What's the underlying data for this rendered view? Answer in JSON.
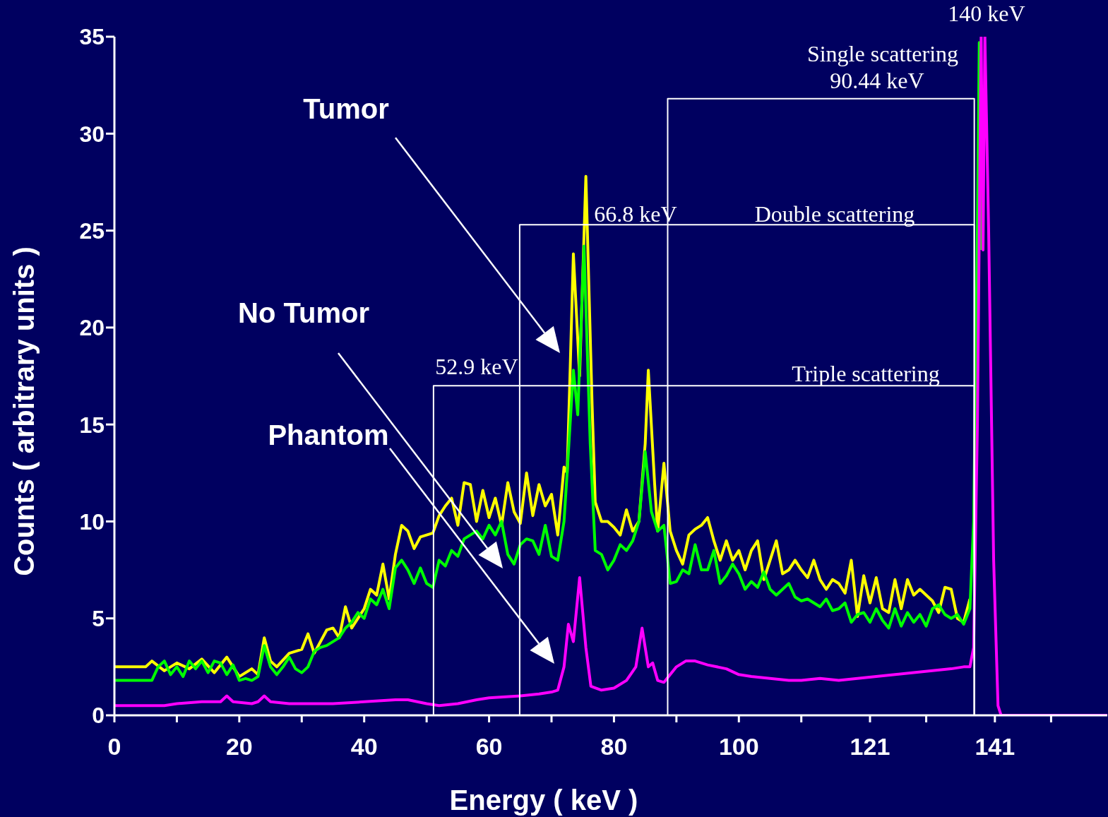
{
  "chart_data": {
    "type": "line",
    "xlabel": "Energy ( keV )",
    "ylabel": "Counts ( arbitrary units )",
    "xlim": [
      0,
      159
    ],
    "ylim": [
      0,
      35
    ],
    "xticks": [
      0,
      {
        "value": 10,
        "label": null
      },
      20,
      {
        "value": 30,
        "label": null
      },
      40,
      {
        "value": 50,
        "label": null
      },
      60,
      {
        "value": 70,
        "label": null
      },
      80,
      {
        "value": 90,
        "label": null
      },
      100,
      {
        "value": 110,
        "label": null
      },
      121,
      {
        "value": 130,
        "label": null
      },
      141,
      {
        "value": 150,
        "label": null
      }
    ],
    "yticks": [
      0,
      5,
      10,
      15,
      20,
      25,
      30,
      35
    ],
    "marker": "none",
    "line_style": "solid",
    "series": [
      {
        "color": "#ffff00",
        "x": [
          0,
          5,
          6,
          8,
          10,
          12,
          14,
          16,
          18,
          20,
          22,
          23,
          24,
          25,
          26,
          28,
          30,
          31,
          32,
          34,
          35,
          36,
          37,
          38,
          40,
          41,
          42,
          43,
          44,
          45,
          46,
          47,
          48,
          49,
          51,
          52,
          53,
          54,
          55,
          56,
          57,
          58,
          59,
          60,
          61,
          62,
          63,
          64,
          65,
          66,
          67,
          68,
          69,
          70,
          71,
          72,
          72.5,
          73,
          73.5,
          74.5,
          75.5,
          76.5,
          77,
          78,
          79,
          80,
          81,
          82,
          83,
          84,
          85,
          85.5,
          86.5,
          87,
          88,
          89,
          90,
          91,
          92,
          93,
          94,
          95,
          96,
          97,
          98,
          99,
          100,
          101,
          102,
          103,
          104,
          105,
          106,
          107,
          108,
          109,
          110,
          111,
          112,
          113,
          114,
          115,
          116,
          117,
          118,
          119,
          120,
          121,
          122,
          123,
          124,
          125,
          126,
          127,
          128,
          129,
          130,
          131,
          132,
          133,
          134,
          135,
          136,
          137
        ],
        "values": [
          2.5,
          2.5,
          2.8,
          2.3,
          2.7,
          2.4,
          2.9,
          2.2,
          3.0,
          2.0,
          2.4,
          2.1,
          4.0,
          2.8,
          2.5,
          3.2,
          3.4,
          4.2,
          3.2,
          4.4,
          4.5,
          4.0,
          5.6,
          4.5,
          5.5,
          6.5,
          6.2,
          7.8,
          6.0,
          8.3,
          9.8,
          9.5,
          8.6,
          9.2,
          9.4,
          10.3,
          10.8,
          11.2,
          9.8,
          12.0,
          11.9,
          10.0,
          11.6,
          10.2,
          11.2,
          9.8,
          12.0,
          10.5,
          9.9,
          12.5,
          10.3,
          11.9,
          10.8,
          11.4,
          9.3,
          12.8,
          12.5,
          18,
          23.8,
          17.5,
          27.8,
          16,
          11,
          10.0,
          10.0,
          9.7,
          9.3,
          10.6,
          9.5,
          10,
          14,
          17.8,
          12,
          9.5,
          13.0,
          9.5,
          8.5,
          7.8,
          9.3,
          9.6,
          9.8,
          10.2,
          9.0,
          8.0,
          9.0,
          8.0,
          8.5,
          7.5,
          8.5,
          9.0,
          7.0,
          8.0,
          9.0,
          7.3,
          7.5,
          8.0,
          7.5,
          7.1,
          8.0,
          7.0,
          6.5,
          7.0,
          6.8,
          6.3,
          8.0,
          5.1,
          7.2,
          5.8,
          7.1,
          5.5,
          5.3,
          7.0,
          5.5,
          7.0,
          6.2,
          6.5,
          6.2,
          5.9,
          5.3,
          6.6,
          6.5,
          5.0,
          4.8,
          6.0
        ]
      },
      {
        "color": "#00ff00",
        "x": [
          0,
          6,
          7,
          8,
          9,
          10,
          11,
          12,
          13,
          14,
          15,
          16,
          17,
          18,
          19,
          20,
          21,
          22,
          23,
          24,
          25,
          26,
          27,
          28,
          29,
          30,
          31,
          32,
          33,
          34,
          35,
          36,
          37,
          38,
          39,
          40,
          41,
          42,
          43,
          44,
          45,
          46,
          47,
          48,
          49,
          50,
          51,
          52,
          53,
          54,
          55,
          56,
          57,
          58,
          59,
          60,
          61,
          62,
          63,
          64,
          65,
          66,
          67,
          68,
          69,
          70,
          71,
          72,
          72.5,
          73.5,
          74.2,
          75.2,
          76.2,
          77,
          78,
          79,
          80,
          81,
          82,
          83,
          84,
          85,
          86,
          87,
          88,
          89,
          90,
          91,
          92,
          93,
          94,
          95,
          96,
          97,
          98,
          99,
          100,
          101,
          102,
          103,
          104,
          105,
          106,
          107,
          108,
          109,
          110,
          111,
          112,
          113,
          114,
          115,
          116,
          117,
          118,
          119,
          120,
          121,
          122,
          123,
          124,
          125,
          126,
          127,
          128,
          129,
          130,
          131,
          132,
          133,
          134,
          135,
          136,
          137,
          137.6,
          138.2,
          138.5,
          138.8
        ],
        "values": [
          1.8,
          1.8,
          2.5,
          2.8,
          2.1,
          2.5,
          2.0,
          2.8,
          2.4,
          2.8,
          2.2,
          2.8,
          2.7,
          2.1,
          2.6,
          1.8,
          1.9,
          1.8,
          2.0,
          3.6,
          2.5,
          2.1,
          2.5,
          3.0,
          2.4,
          2.2,
          2.5,
          3.3,
          3.5,
          3.6,
          3.8,
          4.0,
          4.5,
          4.8,
          5.3,
          5.0,
          6.0,
          5.7,
          6.5,
          5.5,
          7.6,
          8.0,
          7.5,
          6.8,
          7.6,
          6.8,
          6.6,
          8.0,
          7.7,
          8.5,
          8.2,
          9.1,
          9.3,
          9.5,
          9.1,
          9.8,
          9.3,
          10.0,
          8.3,
          7.8,
          8.8,
          9.1,
          9.0,
          8.3,
          9.8,
          8.2,
          8.0,
          10.0,
          12.5,
          17.8,
          15.5,
          24.2,
          14,
          8.5,
          8.3,
          7.5,
          8.0,
          8.8,
          8.5,
          9.0,
          10.0,
          13.6,
          10.5,
          9.5,
          9.8,
          6.8,
          6.9,
          7.5,
          7.3,
          8.8,
          7.5,
          7.5,
          8.5,
          6.8,
          7.2,
          7.8,
          7.3,
          6.5,
          6.9,
          6.6,
          7.4,
          6.5,
          6.2,
          6.5,
          6.8,
          6.1,
          5.9,
          6.0,
          5.8,
          5.6,
          6.0,
          5.4,
          5.5,
          5.8,
          4.8,
          5.2,
          5.3,
          4.8,
          5.5,
          4.9,
          4.5,
          5.5,
          4.6,
          5.3,
          4.8,
          5.2,
          4.6,
          5.5,
          5.7,
          5.2,
          5.0,
          5.2,
          4.7,
          5.5,
          10,
          25,
          34.7,
          24
        ]
      },
      {
        "color": "#ff00ff",
        "x": [
          0,
          8,
          10,
          14,
          17,
          18,
          19,
          22,
          23,
          24,
          25,
          28,
          30,
          35,
          40,
          45,
          47,
          50,
          52,
          55,
          58,
          60,
          65,
          68,
          70,
          71,
          72,
          72.7,
          73.5,
          74.5,
          75.5,
          76.3,
          78,
          80,
          82,
          83.5,
          84.5,
          85.5,
          86.2,
          87,
          88,
          89,
          90,
          91.5,
          93,
          95,
          98,
          100,
          102,
          105,
          108,
          110,
          113,
          116,
          119,
          122,
          125,
          128,
          131,
          134,
          136,
          137,
          137.6,
          138.2,
          138.8,
          139.1,
          139.4,
          140,
          140.8,
          141.5,
          142,
          159
        ],
        "values": [
          0.5,
          0.5,
          0.6,
          0.7,
          0.7,
          1.0,
          0.7,
          0.6,
          0.7,
          1.0,
          0.7,
          0.6,
          0.6,
          0.6,
          0.7,
          0.8,
          0.8,
          0.6,
          0.5,
          0.6,
          0.8,
          0.9,
          1.0,
          1.1,
          1.2,
          1.3,
          2.5,
          4.7,
          3.8,
          7.1,
          3.5,
          1.5,
          1.3,
          1.4,
          1.8,
          2.5,
          4.5,
          2.5,
          2.7,
          1.8,
          1.7,
          2.1,
          2.5,
          2.8,
          2.8,
          2.6,
          2.4,
          2.1,
          2.0,
          1.9,
          1.8,
          1.8,
          1.9,
          1.8,
          1.9,
          2.0,
          2.1,
          2.2,
          2.3,
          2.4,
          2.5,
          2.5,
          3.5,
          15,
          35,
          24,
          35,
          25,
          8,
          0.5,
          0,
          0
        ]
      },
      {
        "type": "line",
        "color": "#ffffff",
        "x": [
          51.1,
          51.1,
          137.7,
          137.7
        ],
        "values": [
          0,
          17,
          17,
          0
        ]
      },
      {
        "type": "line",
        "color": "#ffffff",
        "x": [
          64.9,
          64.9,
          137.7,
          137.7
        ],
        "values": [
          0,
          25.3,
          25.3,
          0
        ]
      },
      {
        "type": "line",
        "color": "#ffffff",
        "x": [
          88.6,
          88.6,
          137.7,
          137.7
        ],
        "values": [
          0,
          31.8,
          31.8,
          0
        ]
      }
    ],
    "annotations": [
      "Tumor",
      "No Tumor",
      "Phantom",
      "52.9 keV",
      "66.8 keV",
      "Double scattering",
      "Triple scattering",
      "90.44 keV",
      "Single  scattering",
      "140 keV"
    ]
  }
}
